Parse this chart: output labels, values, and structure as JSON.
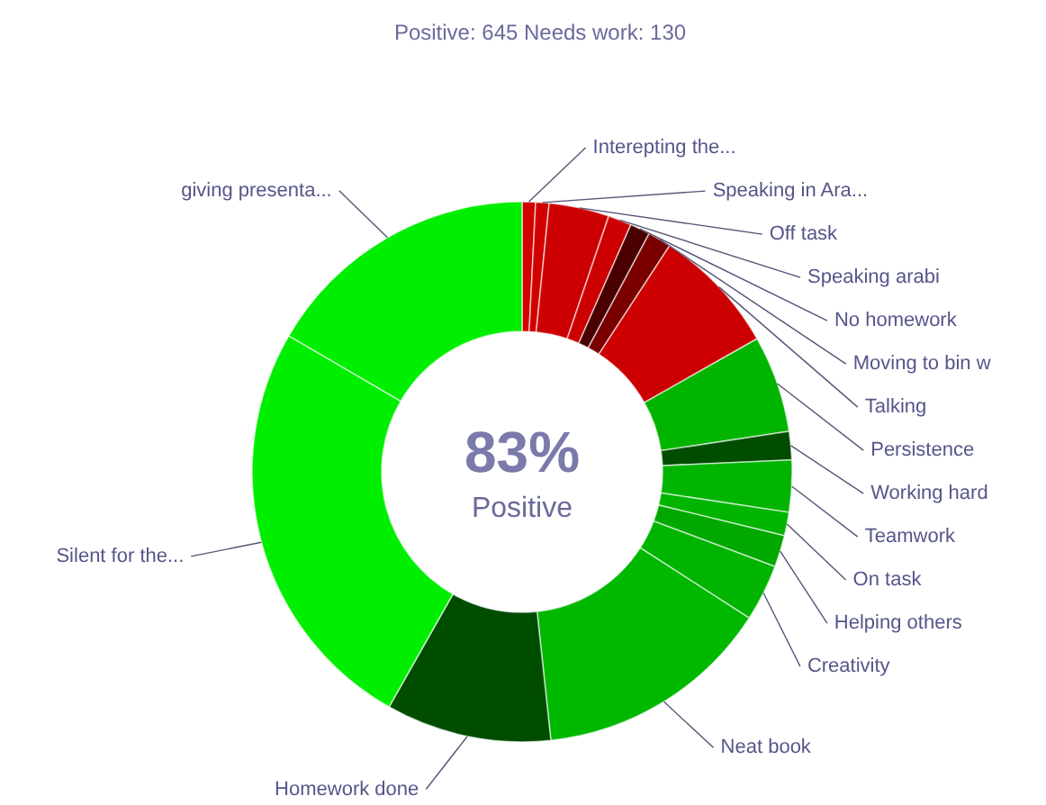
{
  "chart_data": {
    "type": "donut",
    "title": "Positive: 645   Needs work: 130",
    "annotations": [
      "83%",
      "Positive"
    ],
    "categories": [
      "Interepting the...",
      "Speaking in Ara...",
      "Off task",
      "Speaking arabi",
      "No homework",
      "Moving to bin w",
      "Talking",
      "Persistence",
      "Working hard",
      "Teamwork",
      "On task",
      "Helping others",
      "Creativity",
      "Neat book",
      "Homework done",
      "Silent for the...",
      "giving presenta..."
    ],
    "values": [
      0.8,
      0.8,
      3.6,
      1.4,
      1.2,
      1.4,
      7.6,
      5.8,
      1.7,
      3.1,
      1.4,
      1.9,
      3.4,
      14.2,
      9.9,
      25.2,
      16.6
    ],
    "colors": [
      "#d10000",
      "#d10000",
      "#cc0000",
      "#cc0000",
      "#4a0000",
      "#7a0000",
      "#cc0000",
      "#00b400",
      "#004d00",
      "#00b400",
      "#00b400",
      "#00a800",
      "#00b400",
      "#00b800",
      "#004d00",
      "#00ee00",
      "#00ee00"
    ]
  }
}
